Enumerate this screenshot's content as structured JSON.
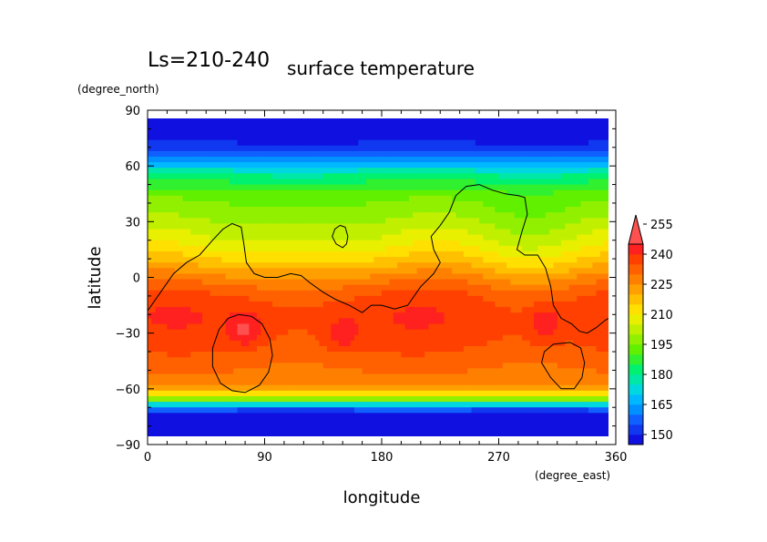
{
  "chart_data": {
    "type": "heatmap",
    "title": "surface temperature",
    "subtitle": "Ls=210-240",
    "xlabel": "longitude",
    "ylabel": "latitude",
    "xunit": "(degree_east)",
    "yunit": "(degree_north)",
    "xlim": [
      0,
      360
    ],
    "ylim": [
      -90,
      90
    ],
    "xticks": [
      "0",
      "90",
      "180",
      "270",
      "360"
    ],
    "yticks": [
      "90",
      "60",
      "30",
      "0",
      "−30",
      "−60",
      "−90"
    ],
    "colorbar": {
      "levels": [
        145,
        150,
        155,
        160,
        165,
        170,
        175,
        180,
        185,
        190,
        195,
        200,
        205,
        210,
        215,
        220,
        225,
        230,
        235,
        240,
        245,
        250,
        255,
        260
      ],
      "labels": [
        "150",
        "165",
        "180",
        "195",
        "210",
        "225",
        "240",
        "255"
      ],
      "colors": [
        "#1010e0",
        "#1038f0",
        "#1060ff",
        "#0090ff",
        "#00b8ff",
        "#00d8e0",
        "#00e8a8",
        "#00f070",
        "#30f030",
        "#60f000",
        "#90f000",
        "#c0f000",
        "#e8f000",
        "#ffe000",
        "#ffc000",
        "#ffa000",
        "#ff8000",
        "#ff6000",
        "#ff4000",
        "#ff2020",
        "#ff5050"
      ]
    },
    "zonal_profile": {
      "lat": [
        85,
        80,
        75,
        70,
        65,
        60,
        55,
        50,
        45,
        40,
        35,
        30,
        25,
        20,
        15,
        10,
        5,
        0,
        -5,
        -10,
        -15,
        -20,
        -25,
        -30,
        -35,
        -40,
        -45,
        -50,
        -55,
        -60,
        -63,
        -66,
        -69,
        -72,
        -75,
        -78,
        -81,
        -84
      ],
      "temperature": [
        147,
        147,
        148,
        152,
        160,
        170,
        180,
        187,
        192,
        195,
        197,
        200,
        203,
        206,
        210,
        215,
        220,
        226,
        231,
        235,
        237,
        238,
        238,
        237,
        236,
        234,
        232,
        230,
        228,
        222,
        212,
        195,
        170,
        152,
        148,
        147,
        147,
        147
      ]
    },
    "warm_spots": [
      {
        "lon": 75,
        "lat": -28,
        "value": 247
      },
      {
        "lon": 305,
        "lat": -25,
        "value": 247
      },
      {
        "lon": 150,
        "lat": -31,
        "value": 244
      }
    ],
    "contour_lines": [
      [
        [
          0,
          -18
        ],
        [
          10,
          -8
        ],
        [
          20,
          2
        ],
        [
          30,
          8
        ],
        [
          40,
          12
        ],
        [
          50,
          20
        ],
        [
          58,
          26
        ],
        [
          65,
          29
        ],
        [
          72,
          27
        ],
        [
          74,
          18
        ],
        [
          76,
          8
        ],
        [
          82,
          2
        ],
        [
          90,
          0
        ],
        [
          100,
          0
        ],
        [
          110,
          2
        ],
        [
          118,
          1
        ],
        [
          125,
          -3
        ],
        [
          135,
          -8
        ],
        [
          145,
          -12
        ],
        [
          155,
          -15
        ],
        [
          165,
          -19
        ],
        [
          172,
          -15
        ],
        [
          180,
          -15
        ],
        [
          190,
          -17
        ],
        [
          200,
          -15
        ],
        [
          210,
          -5
        ],
        [
          220,
          2
        ],
        [
          225,
          8
        ],
        [
          220,
          15
        ],
        [
          218,
          22
        ],
        [
          225,
          28
        ],
        [
          232,
          35
        ],
        [
          237,
          44
        ],
        [
          245,
          49
        ],
        [
          255,
          50
        ],
        [
          265,
          47
        ],
        [
          275,
          45
        ],
        [
          285,
          44
        ],
        [
          290,
          43
        ],
        [
          292,
          34
        ],
        [
          288,
          25
        ],
        [
          284,
          15
        ],
        [
          290,
          12
        ],
        [
          300,
          12
        ],
        [
          306,
          5
        ],
        [
          310,
          -5
        ],
        [
          312,
          -15
        ],
        [
          318,
          -22
        ],
        [
          326,
          -25
        ],
        [
          332,
          -29
        ],
        [
          338,
          -30
        ],
        [
          345,
          -27
        ],
        [
          352,
          -23
        ],
        [
          360,
          -20
        ]
      ],
      [
        [
          148,
          28
        ],
        [
          152,
          27
        ],
        [
          154,
          22
        ],
        [
          153,
          18
        ],
        [
          150,
          16
        ],
        [
          145,
          18
        ],
        [
          142,
          22
        ],
        [
          144,
          26
        ],
        [
          148,
          28
        ]
      ],
      [
        [
          70,
          -20
        ],
        [
          80,
          -21
        ],
        [
          88,
          -25
        ],
        [
          94,
          -33
        ],
        [
          96,
          -42
        ],
        [
          93,
          -51
        ],
        [
          86,
          -58
        ],
        [
          75,
          -62
        ],
        [
          65,
          -61
        ],
        [
          56,
          -57
        ],
        [
          50,
          -48
        ],
        [
          50,
          -38
        ],
        [
          55,
          -28
        ],
        [
          62,
          -22
        ],
        [
          70,
          -20
        ]
      ],
      [
        [
          325,
          -35
        ],
        [
          333,
          -38
        ],
        [
          336,
          -46
        ],
        [
          334,
          -54
        ],
        [
          328,
          -60
        ],
        [
          318,
          -60
        ],
        [
          310,
          -54
        ],
        [
          303,
          -46
        ],
        [
          305,
          -40
        ],
        [
          312,
          -36
        ],
        [
          325,
          -35
        ]
      ]
    ]
  }
}
